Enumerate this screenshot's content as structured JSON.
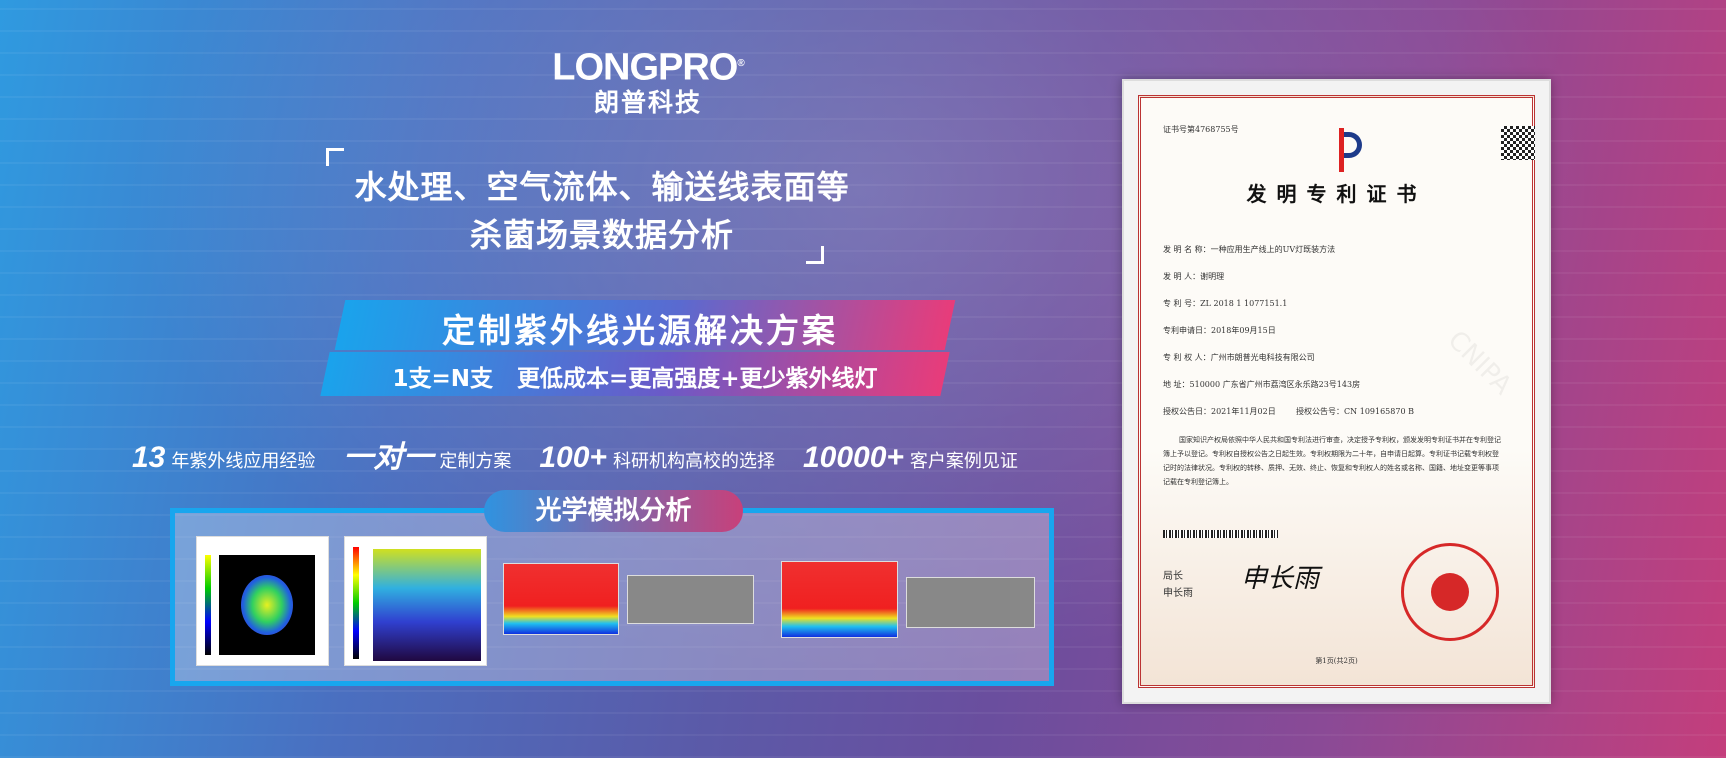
{
  "logo": {
    "en": "LONGPRO",
    "cn": "朗普科技",
    "registered": "®"
  },
  "headline": {
    "line1": "水处理、空气流体、输送线表面等",
    "line2": "杀菌场景数据分析"
  },
  "ribbon": {
    "line1": "定制紫外线光源解决方案",
    "line2": "1支=N支   更低成本=更高强度+更少紫外线灯"
  },
  "stats": [
    {
      "big": "13",
      "text": "年紫外线应用经验"
    },
    {
      "big": "一对一",
      "text": "定制方案"
    },
    {
      "big": "100+",
      "text": "科研机构高校的选择"
    },
    {
      "big": "10000+",
      "text": "客户案例见证"
    }
  ],
  "panel": {
    "badge": "光学模拟分析"
  },
  "certificate": {
    "number": "证书号第4768755号",
    "title": "发明专利证书",
    "fields": [
      "发 明 名 称：一种应用生产线上的UV灯既装方法",
      "发  明  人：谢明理",
      "专  利  号：ZL 2018 1 1077151.1",
      "专利申请日：2018年09月15日",
      "专 利 权 人：广州市朗普光电科技有限公司",
      "地      址：510000 广东省广州市荔湾区永乐路23号143房",
      "授权公告日：2021年11月02日        授权公告号：CN 109165870 B"
    ],
    "body": "国家知识产权局依照中华人民共和国专利法进行审查，决定授予专利权，颁发发明专利证书并在专利登记簿上予以登记。专利权自授权公告之日起生效。专利权期限为二十年，自申请日起算。专利证书记载专利权登记时的法律状况。专利权的转移、质押、无效、终止、恢复和专利权人的姓名或名称、国籍、地址变更等事项记载在专利登记簿上。",
    "signer_title": "局长",
    "signer_name": "申长雨",
    "watermark": "CNIPA",
    "page": "第1页(共2页)"
  },
  "colors": {
    "accent_blue": "#18a6ee",
    "accent_pink": "#e83c7a",
    "seal_red": "#d62828"
  }
}
